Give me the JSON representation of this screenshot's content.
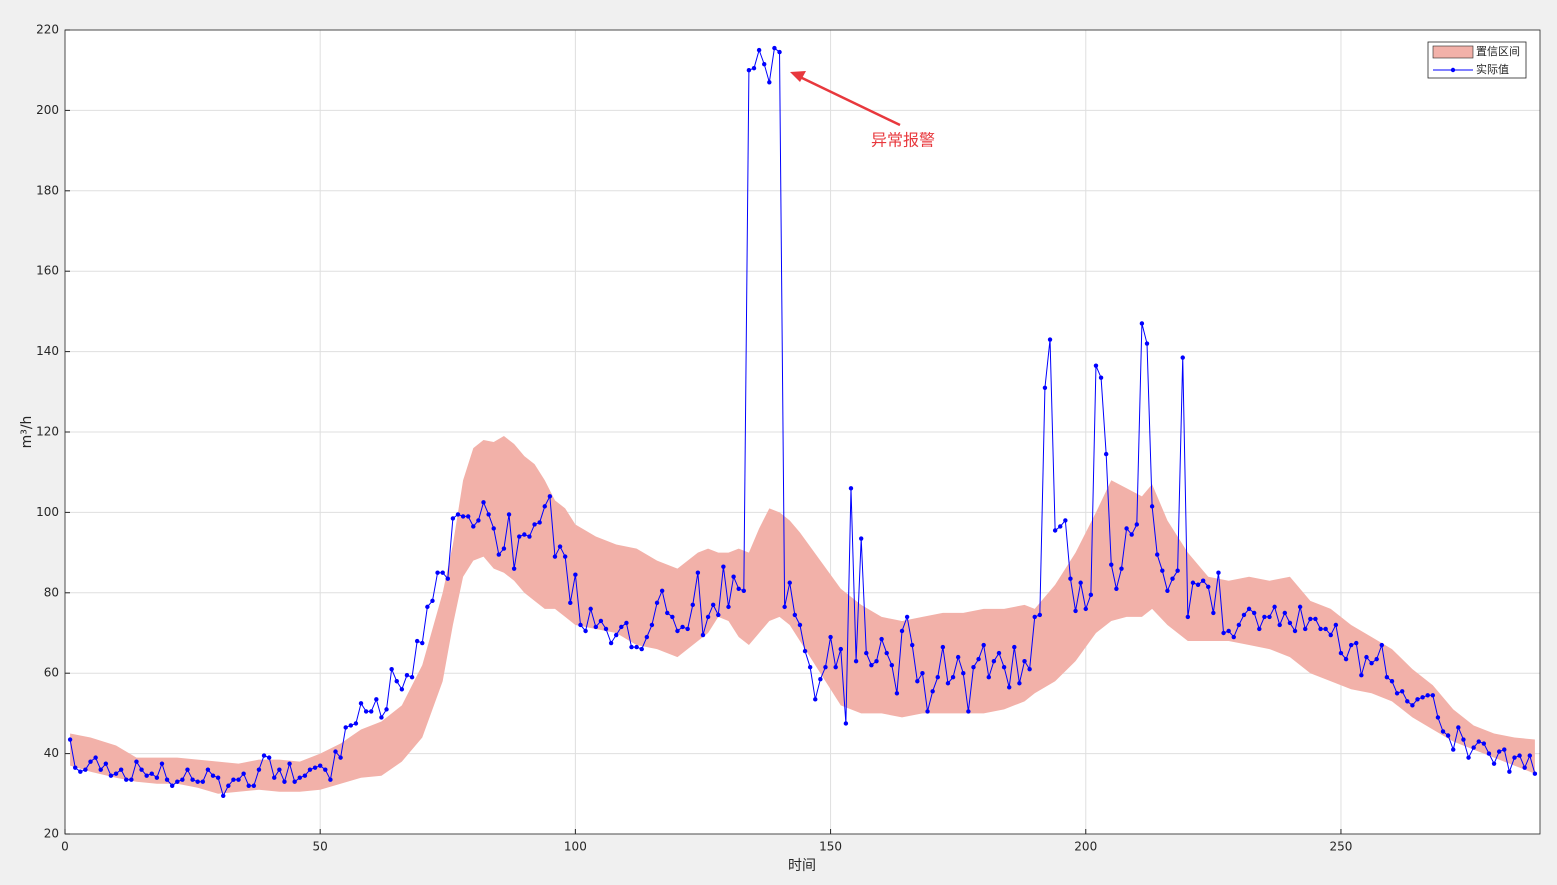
{
  "chart_data": {
    "type": "line",
    "xlabel": "时间",
    "ylabel": "m³/h",
    "annotation": "异常报警",
    "xlim": [
      0,
      289
    ],
    "ylim": [
      20,
      220
    ],
    "xticks": [
      0,
      50,
      100,
      150,
      200,
      250
    ],
    "yticks": [
      20,
      40,
      60,
      80,
      100,
      120,
      140,
      160,
      180,
      200,
      220
    ],
    "grid": true,
    "legend": "upper-right",
    "x": [
      1,
      2,
      3,
      4,
      5,
      6,
      7,
      8,
      9,
      10,
      11,
      12,
      13,
      14,
      15,
      16,
      17,
      18,
      19,
      20,
      21,
      22,
      23,
      24,
      25,
      26,
      27,
      28,
      29,
      30,
      31,
      32,
      33,
      34,
      35,
      36,
      37,
      38,
      39,
      40,
      41,
      42,
      43,
      44,
      45,
      46,
      47,
      48,
      49,
      50,
      51,
      52,
      53,
      54,
      55,
      56,
      57,
      58,
      59,
      60,
      61,
      62,
      63,
      64,
      65,
      66,
      67,
      68,
      69,
      70,
      71,
      72,
      73,
      74,
      75,
      76,
      77,
      78,
      79,
      80,
      81,
      82,
      83,
      84,
      85,
      86,
      87,
      88,
      89,
      90,
      91,
      92,
      93,
      94,
      95,
      96,
      97,
      98,
      99,
      100,
      101,
      102,
      103,
      104,
      105,
      106,
      107,
      108,
      109,
      110,
      111,
      112,
      113,
      114,
      115,
      116,
      117,
      118,
      119,
      120,
      121,
      122,
      123,
      124,
      125,
      126,
      127,
      128,
      129,
      130,
      131,
      132,
      133,
      134,
      135,
      136,
      137,
      138,
      139,
      140,
      141,
      142,
      143,
      144,
      145,
      146,
      147,
      148,
      149,
      150,
      151,
      152,
      153,
      154,
      155,
      156,
      157,
      158,
      159,
      160,
      161,
      162,
      163,
      164,
      165,
      166,
      167,
      168,
      169,
      170,
      171,
      172,
      173,
      174,
      175,
      176,
      177,
      178,
      179,
      180,
      181,
      182,
      183,
      184,
      185,
      186,
      187,
      188,
      189,
      190,
      191,
      192,
      193,
      194,
      195,
      196,
      197,
      198,
      199,
      200,
      201,
      202,
      203,
      204,
      205,
      206,
      207,
      208,
      209,
      210,
      211,
      212,
      213,
      214,
      215,
      216,
      217,
      218,
      219,
      220,
      221,
      222,
      223,
      224,
      225,
      226,
      227,
      228,
      229,
      230,
      231,
      232,
      233,
      234,
      235,
      236,
      237,
      238,
      239,
      240,
      241,
      242,
      243,
      244,
      245,
      246,
      247,
      248,
      249,
      250,
      251,
      252,
      253,
      254,
      255,
      256,
      257,
      258,
      259,
      260,
      261,
      262,
      263,
      264,
      265,
      266,
      267,
      268,
      269,
      270,
      271,
      272,
      273,
      274,
      275,
      276,
      277,
      278,
      279,
      280,
      281,
      282,
      283,
      284,
      285,
      286,
      287,
      288
    ],
    "series": [
      {
        "name": "实际值",
        "color": "#0000ff",
        "values": [
          43.5,
          36.5,
          35.5,
          36,
          38,
          39,
          36,
          37.5,
          34.5,
          35,
          36,
          33.5,
          33.5,
          38,
          36,
          34.5,
          35,
          34,
          37.5,
          33.5,
          32,
          33,
          33.5,
          36,
          33.5,
          33,
          33,
          36,
          34.5,
          34,
          29.5,
          32,
          33.5,
          33.5,
          35,
          32,
          32,
          36,
          39.5,
          39,
          34,
          36,
          33,
          37.5,
          33,
          34,
          34.5,
          36,
          36.5,
          37,
          36,
          33.5,
          40.5,
          39,
          46.5,
          47,
          47.5,
          52.5,
          50.5,
          50.5,
          53.5,
          49,
          51,
          61,
          58,
          56,
          59.5,
          59,
          68,
          67.5,
          76.5,
          78,
          85,
          85,
          83.5,
          98.5,
          99.5,
          99,
          99,
          96.5,
          98,
          102.5,
          99.5,
          96,
          89.5,
          91,
          99.5,
          86,
          94,
          94.5,
          94,
          97,
          97.5,
          101.5,
          104,
          89,
          91.5,
          89,
          77.5,
          84.5,
          72,
          70.5,
          76,
          71.5,
          73,
          71,
          67.5,
          69.5,
          71.5,
          72.5,
          66.5,
          66.5,
          66,
          69,
          72,
          77.5,
          80.5,
          75,
          74,
          70.5,
          71.5,
          71,
          77,
          85,
          69.5,
          74,
          77,
          74.5,
          86.5,
          76.5,
          84,
          81,
          80.5,
          210,
          210.5,
          215,
          211.5,
          207,
          215.5,
          214.5,
          76.5,
          82.5,
          74.5,
          72,
          65.5,
          61.5,
          53.5,
          58.5,
          61.5,
          69,
          61.5,
          66,
          47.5,
          106,
          63,
          93.5,
          65,
          62,
          63,
          68.5,
          65,
          62,
          55,
          70.5,
          74,
          67,
          58,
          60,
          50.5,
          55.5,
          59,
          66.5,
          57.5,
          59,
          64,
          60,
          50.5,
          61.5,
          63.5,
          67,
          59,
          63,
          65,
          61.5,
          56.5,
          66.5,
          57.5,
          63,
          61,
          74,
          74.5,
          131,
          143,
          95.5,
          96.5,
          98,
          83.5,
          75.5,
          82.5,
          76,
          79.5,
          136.5,
          133.5,
          114.5,
          87,
          81,
          86,
          96,
          94.5,
          97,
          147,
          142,
          101.5,
          89.5,
          85.5,
          80.5,
          83.5,
          85.5,
          138.5,
          74,
          82.5,
          82,
          83,
          81.5,
          75,
          85,
          70,
          70.5,
          69,
          72,
          74.5,
          76,
          75,
          71,
          74,
          74,
          76.5,
          72,
          75,
          72.5,
          70.5,
          76.5,
          71,
          73.5,
          73.5,
          71,
          71,
          69.5,
          72,
          65,
          63.5,
          67,
          67.5,
          59.5,
          64,
          62.5,
          63.5,
          67,
          59,
          58,
          55,
          55.5,
          53,
          52,
          53.5,
          54,
          54.5,
          54.5,
          49,
          45.5,
          44.5,
          41,
          46.5,
          43.5,
          39,
          41.5,
          43,
          42.5,
          40,
          37.5,
          40.5,
          41,
          35.5,
          39,
          39.5,
          36.5,
          39.5,
          35
        ]
      }
    ],
    "band": {
      "name": "置信区间",
      "color": "#f2b1a9",
      "x": [
        1,
        5,
        10,
        14,
        18,
        22,
        26,
        30,
        34,
        38,
        42,
        46,
        50,
        54,
        58,
        62,
        66,
        70,
        74,
        76,
        78,
        80,
        82,
        84,
        86,
        88,
        90,
        92,
        94,
        96,
        98,
        100,
        104,
        108,
        112,
        116,
        120,
        124,
        126,
        128,
        130,
        132,
        134,
        136,
        138,
        140,
        142,
        144,
        148,
        152,
        156,
        160,
        164,
        168,
        172,
        176,
        180,
        184,
        188,
        190,
        194,
        198,
        202,
        205,
        208,
        211,
        213,
        216,
        220,
        224,
        228,
        232,
        236,
        240,
        244,
        248,
        252,
        256,
        260,
        264,
        268,
        272,
        276,
        280,
        284,
        288
      ],
      "upper": [
        45,
        44,
        42,
        39,
        39,
        39,
        38.5,
        38,
        37.5,
        38.5,
        38.5,
        38,
        40,
        42.5,
        46,
        48,
        52,
        62,
        80,
        92,
        108,
        116,
        118,
        117.5,
        119,
        117,
        114,
        112,
        108,
        103,
        101,
        97,
        94,
        92,
        91,
        88,
        86,
        90,
        91,
        90,
        90,
        91,
        90,
        96,
        101,
        100,
        98,
        95,
        88,
        81,
        77,
        74,
        73,
        74,
        75,
        75,
        76,
        76,
        77,
        76,
        82,
        90,
        100,
        108,
        106,
        104,
        107,
        98,
        90,
        84,
        83,
        84,
        83,
        84,
        78,
        76,
        72,
        69,
        66,
        61,
        57,
        51,
        47,
        45,
        44,
        43.5
      ],
      "lower": [
        37,
        35.5,
        34,
        33,
        32.5,
        32.5,
        31.5,
        30,
        30.5,
        31,
        30.5,
        30.5,
        31,
        32.5,
        34,
        34.5,
        38,
        44,
        58,
        72,
        84,
        88,
        89,
        86,
        85,
        83,
        80,
        78,
        76,
        76,
        74,
        72,
        71,
        70,
        67,
        66,
        64,
        68,
        70,
        74,
        73,
        69,
        67,
        70,
        73,
        74,
        72,
        68,
        60,
        52,
        50,
        50,
        49,
        50,
        50,
        50,
        50,
        51,
        53,
        55,
        58,
        63,
        70,
        73,
        74,
        74,
        76,
        72,
        68,
        68,
        68,
        67,
        66,
        64,
        60,
        58,
        56,
        55,
        53,
        49,
        46,
        43,
        41,
        39,
        37,
        35
      ]
    }
  }
}
